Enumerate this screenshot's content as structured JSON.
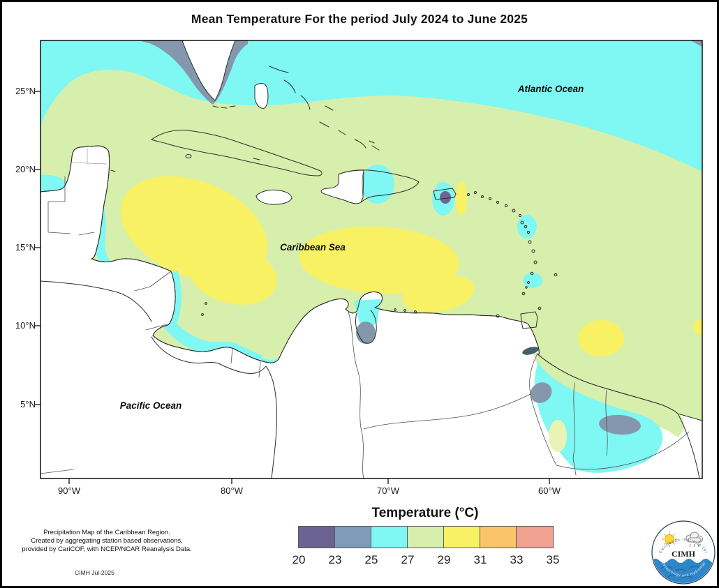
{
  "title": "Mean Temperature For the period July 2024 to June 2025",
  "map": {
    "labels": {
      "atlantic": "Atlantic Ocean",
      "caribbean": "Caribbean Sea",
      "pacific": "Pacific Ocean"
    },
    "lat_ticks": [
      {
        "label": "25°N"
      },
      {
        "label": "20°N"
      },
      {
        "label": "15°N"
      },
      {
        "label": "10°N"
      },
      {
        "label": "5°N"
      }
    ],
    "lon_ticks": [
      {
        "label": "90°W"
      },
      {
        "label": "80°W"
      },
      {
        "label": "70°W"
      },
      {
        "label": "60°W"
      }
    ]
  },
  "legend": {
    "title": "Temperature (°C)",
    "tick_labels": [
      "20",
      "23",
      "25",
      "27",
      "29",
      "31",
      "33",
      "35"
    ],
    "colors": [
      "#6b6493",
      "#7e9cba",
      "#7ff7f2",
      "#d7efac",
      "#f8f163",
      "#f9c46a",
      "#f0a18f"
    ],
    "bins": [
      {
        "from": 20,
        "to": 23,
        "color": "#6b6493"
      },
      {
        "from": 23,
        "to": 25,
        "color": "#7e9cba"
      },
      {
        "from": 25,
        "to": 27,
        "color": "#7ff7f2"
      },
      {
        "from": 27,
        "to": 29,
        "color": "#d7efac"
      },
      {
        "from": 29,
        "to": 31,
        "color": "#f8f163"
      },
      {
        "from": 31,
        "to": 33,
        "color": "#f9c46a"
      },
      {
        "from": 33,
        "to": 35,
        "color": "#f0a18f"
      }
    ]
  },
  "credits": {
    "line1": "Precipitation Map of the Caribbean Region.",
    "line2": "Created by aggregating station based observations,",
    "line3": "provided by CariCOF, with NCEP/NCAR Reanalysis Data.",
    "stamp": "CIMH Jul-2025"
  },
  "logo": {
    "acronym": "CIMH",
    "arc_top": "Caribbean Institute for",
    "arc_bottom": "Meteorology and Hydrology"
  },
  "palette": {
    "green": "#d7efac",
    "cyan": "#7ff7f2",
    "yellow": "#f8f163",
    "steel": "#8497ad",
    "purple": "#6f6595",
    "palegreen": "#e9f4b4",
    "teal": "#44606c",
    "land": "#ffffff",
    "outline": "#2b2b2b"
  }
}
